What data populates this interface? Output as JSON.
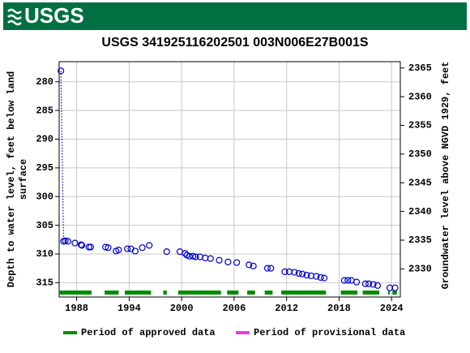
{
  "header": {
    "logo": "USGS"
  },
  "chart_data": {
    "type": "scatter",
    "title": "USGS 341925116202501 003N006E27B001S",
    "ylabel": [
      "Depth to water level, feet below land",
      "surface"
    ],
    "y2label": "Groundwater level above NGVD 1929, feet",
    "xlim": [
      1986,
      2025
    ],
    "xticks": [
      1988,
      1994,
      2000,
      2006,
      2012,
      2018,
      2024
    ],
    "ylim": [
      276.5,
      317.5
    ],
    "yticks": [
      280,
      285,
      290,
      295,
      300,
      305,
      310,
      315
    ],
    "y_inverted": true,
    "y2lim": [
      2325.1,
      2366.1
    ],
    "y2ticks": [
      2330,
      2335,
      2340,
      2345,
      2350,
      2355,
      2360,
      2365
    ],
    "grid": true,
    "series": [
      {
        "color": "#0000c8",
        "x": [
          1986.2,
          1986.5,
          1986.7,
          1987.0,
          1987.8,
          1988.5,
          1988.6,
          1989.4,
          1989.6,
          1991.3,
          1991.6,
          1992.5,
          1992.8,
          1993.8,
          1994.2,
          1994.7,
          1995.5,
          1996.3,
          1998.3,
          1999.8,
          2000.4,
          2000.6,
          2000.9,
          2001.3,
          2001.6,
          2002.1,
          2002.7,
          2003.3,
          2004.3,
          2005.3,
          2006.3,
          2007.7,
          2008.2,
          2009.8,
          2010.2,
          2011.8,
          2012.3,
          2012.9,
          2013.4,
          2013.8,
          2014.3,
          2014.8,
          2015.4,
          2015.9,
          2016.3,
          2018.6,
          2019.0,
          2019.4,
          2020.0,
          2021.0,
          2021.4,
          2021.9,
          2022.4,
          2023.8,
          2024.4
        ],
        "values": [
          278.1,
          307.8,
          307.7,
          307.8,
          308.1,
          308.4,
          308.5,
          308.8,
          308.8,
          308.8,
          308.9,
          309.5,
          309.3,
          309.1,
          309.1,
          309.5,
          308.9,
          308.5,
          309.6,
          309.6,
          309.9,
          310.2,
          310.4,
          310.4,
          310.5,
          310.5,
          310.7,
          310.8,
          311.1,
          311.4,
          311.5,
          311.9,
          312.1,
          312.5,
          312.5,
          313.1,
          313.1,
          313.2,
          313.4,
          313.5,
          313.7,
          313.8,
          313.9,
          314.1,
          314.2,
          314.6,
          314.6,
          314.6,
          314.9,
          315.2,
          315.2,
          315.3,
          315.5,
          315.9,
          315.9
        ]
      }
    ],
    "approved_periods": [
      [
        1986.0,
        1989.7
      ],
      [
        1991.2,
        1992.8
      ],
      [
        1993.5,
        1996.5
      ],
      [
        1997.9,
        1998.3
      ],
      [
        1999.6,
        2004.5
      ],
      [
        2005.2,
        2006.5
      ],
      [
        2007.5,
        2008.4
      ],
      [
        2009.5,
        2010.4
      ],
      [
        2011.4,
        2016.5
      ],
      [
        2018.2,
        2020.1
      ],
      [
        2020.7,
        2022.6
      ],
      [
        2023.6,
        2023.8
      ],
      [
        2024.1,
        2024.6
      ]
    ],
    "legend": [
      {
        "name": "Period of approved data",
        "color": "#008c00"
      },
      {
        "name": "Period of provisional data",
        "color": "#e040e0"
      }
    ]
  }
}
